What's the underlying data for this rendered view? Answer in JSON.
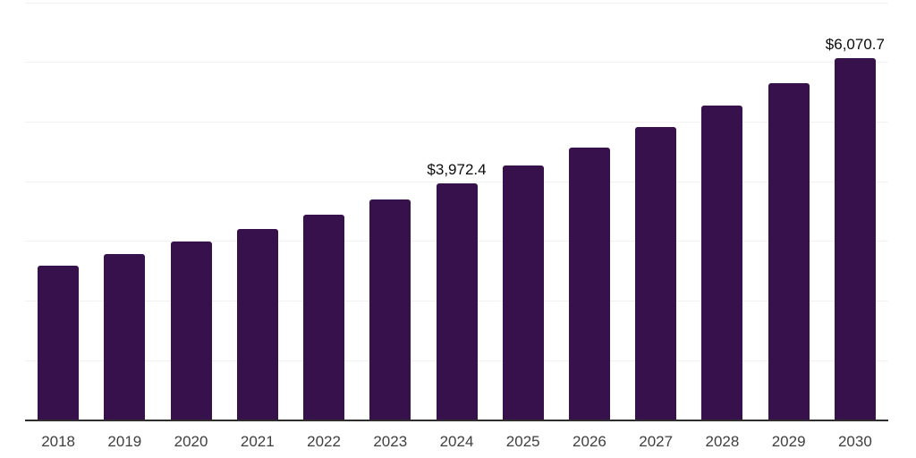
{
  "chart_data": {
    "type": "bar",
    "title": "",
    "xlabel": "",
    "ylabel": "",
    "categories": [
      "2018",
      "2019",
      "2020",
      "2021",
      "2022",
      "2023",
      "2024",
      "2025",
      "2026",
      "2027",
      "2028",
      "2029",
      "2030"
    ],
    "values": [
      2600,
      2790,
      2995,
      3215,
      3450,
      3700,
      3972.4,
      4265,
      4575,
      4910,
      5270,
      5655,
      6070.7
    ],
    "bar_labels": [
      "",
      "",
      "",
      "",
      "",
      "",
      "$3,972.4",
      "",
      "",
      "",
      "",
      "",
      "$6,070.7"
    ],
    "ylim": [
      0,
      7000
    ],
    "gridline_interval": 1000,
    "grid": "horizontal",
    "y_tick_labels_shown": false,
    "legend_position": "none",
    "colors": {
      "bar": "#36114C",
      "axis_line": "#2e2e2e",
      "gridline": "#f1f1f1",
      "tick_label": "#3f3f3f",
      "data_label": "#0c0c0c",
      "background": "#ffffff"
    }
  }
}
